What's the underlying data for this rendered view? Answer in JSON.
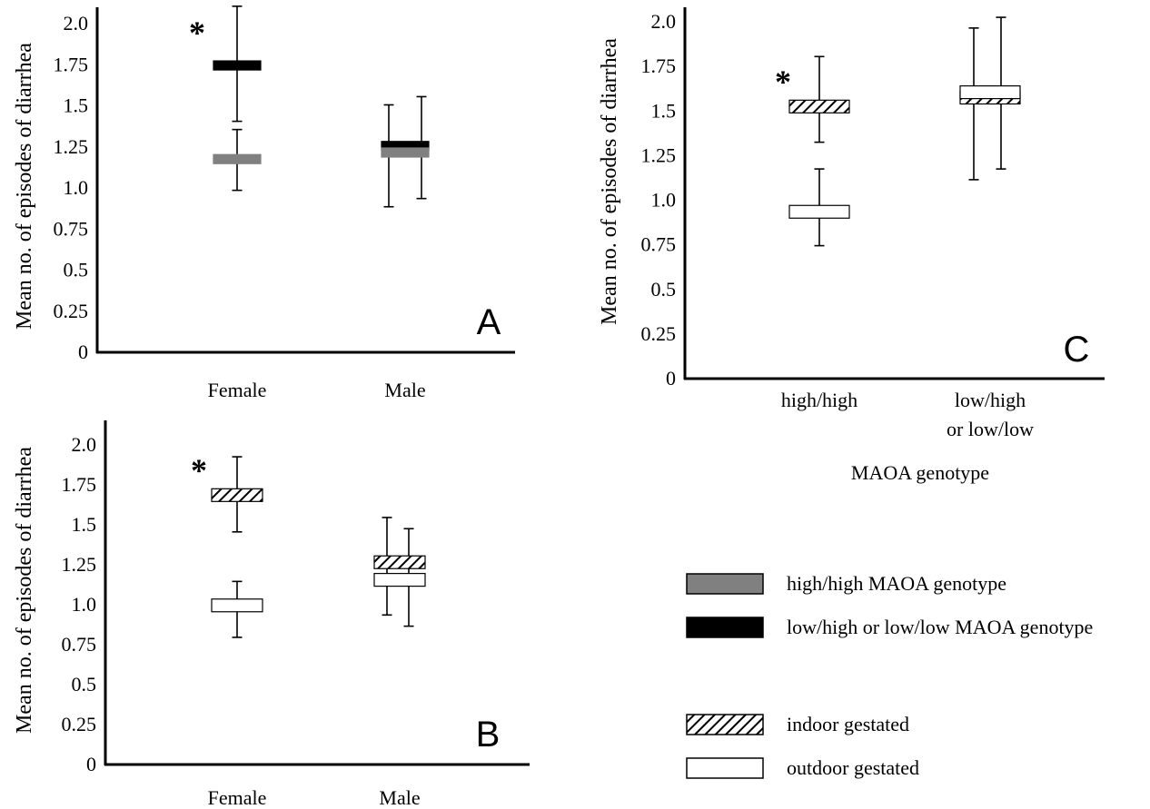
{
  "chart_data": [
    {
      "panel": "A",
      "type": "box",
      "ylabel": "Mean no. of episodes of diarrhea",
      "xlabel": "",
      "ylim": [
        0,
        2.0
      ],
      "yticks": [
        "0",
        "0.25",
        "0.5",
        "0.75",
        "1.0",
        "1.25",
        "1.5",
        "1.75",
        "2.0"
      ],
      "categories": [
        "Female",
        "Male"
      ],
      "series": [
        {
          "key": "low",
          "values": [
            {
              "mean": 1.74,
              "lower": 1.4,
              "upper": 2.1
            },
            {
              "mean": 1.25,
              "lower": 0.88,
              "upper": 1.5
            }
          ]
        },
        {
          "key": "high",
          "values": [
            {
              "mean": 1.17,
              "lower": 0.98,
              "upper": 1.35
            },
            {
              "mean": 1.21,
              "lower": 0.93,
              "upper": 1.55
            }
          ]
        }
      ],
      "annotations": [
        {
          "text": "*",
          "category": "Female"
        }
      ]
    },
    {
      "panel": "B",
      "type": "box",
      "ylabel": "Mean no. of episodes of diarrhea",
      "xlabel": "",
      "ylim": [
        0,
        2.0
      ],
      "yticks": [
        "0",
        "0.25",
        "0.5",
        "0.75",
        "1.0",
        "1.25",
        "1.5",
        "1.75",
        "2.0"
      ],
      "categories": [
        "Female",
        "Male"
      ],
      "series": [
        {
          "key": "indoor",
          "values": [
            {
              "mean": 1.68,
              "lower": 1.45,
              "upper": 1.92
            },
            {
              "mean": 1.26,
              "lower": 0.93,
              "upper": 1.54
            }
          ]
        },
        {
          "key": "outdoor",
          "values": [
            {
              "mean": 0.99,
              "lower": 0.79,
              "upper": 1.14
            },
            {
              "mean": 1.15,
              "lower": 0.86,
              "upper": 1.47
            }
          ]
        }
      ],
      "annotations": [
        {
          "text": "*",
          "category": "Female"
        }
      ]
    },
    {
      "panel": "C",
      "type": "box",
      "ylabel": "Mean no. of episodes of diarrhea",
      "xlabel": "MAOA genotype",
      "ylim": [
        0,
        2.0
      ],
      "yticks": [
        "0",
        "0.25",
        "0.5",
        "0.75",
        "1.0",
        "1.25",
        "1.5",
        "1.75",
        "2.0"
      ],
      "categories": [
        "high/high",
        "low/high\nor low/low"
      ],
      "series": [
        {
          "key": "indoor",
          "values": [
            {
              "mean": 1.52,
              "lower": 1.32,
              "upper": 1.8
            },
            {
              "mean": 1.57,
              "lower": 1.11,
              "upper": 1.96
            }
          ]
        },
        {
          "key": "outdoor",
          "values": [
            {
              "mean": 0.93,
              "lower": 0.74,
              "upper": 1.17
            },
            {
              "mean": 1.6,
              "lower": 1.17,
              "upper": 2.02
            }
          ]
        }
      ],
      "annotations": [
        {
          "text": "*",
          "category": "high/high"
        }
      ]
    }
  ],
  "legend": [
    {
      "key": "high",
      "label": "high/high MAOA genotype",
      "fill": "#808080"
    },
    {
      "key": "low",
      "label": "low/high or low/low MAOA genotype",
      "fill": "#000000"
    },
    {
      "key": "indoor",
      "label": "indoor gestated",
      "fill": "hatch"
    },
    {
      "key": "outdoor",
      "label": "outdoor gestated",
      "fill": "#ffffff"
    }
  ],
  "colors": {
    "high": "#808080",
    "low": "#000000",
    "outdoor": "#ffffff",
    "axis": "#000000"
  }
}
